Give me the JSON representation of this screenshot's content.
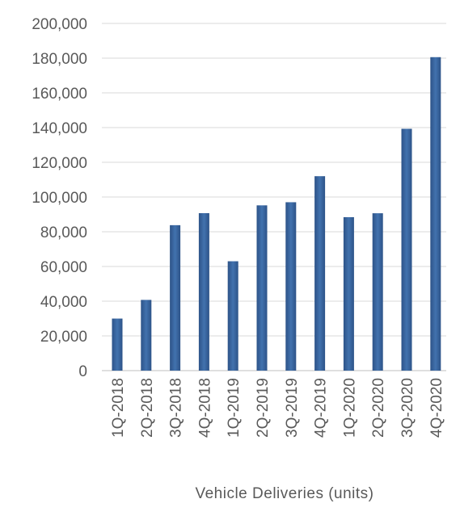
{
  "chart_data": {
    "type": "bar",
    "categories": [
      "1Q-2018",
      "2Q-2018",
      "3Q-2018",
      "4Q-2018",
      "1Q-2019",
      "2Q-2019",
      "3Q-2019",
      "4Q-2019",
      "1Q-2020",
      "2Q-2020",
      "3Q-2020",
      "4Q-2020"
    ],
    "values": [
      29980,
      40740,
      83780,
      90700,
      63000,
      95200,
      97000,
      112000,
      88400,
      90650,
      139300,
      180570
    ],
    "xlabel": "Vehicle Deliveries (units)",
    "ylabel": "",
    "ylim": [
      0,
      200000
    ],
    "yticks": [
      0,
      20000,
      40000,
      60000,
      80000,
      100000,
      120000,
      140000,
      160000,
      180000,
      200000
    ],
    "ytick_labels": [
      "0",
      "20,000",
      "40,000",
      "60,000",
      "80,000",
      "100,000",
      "120,000",
      "140,000",
      "160,000",
      "180,000",
      "200,000"
    ],
    "grid": true,
    "bar_color": "#3a66a0",
    "bar_color_dark": "#2d5388"
  }
}
